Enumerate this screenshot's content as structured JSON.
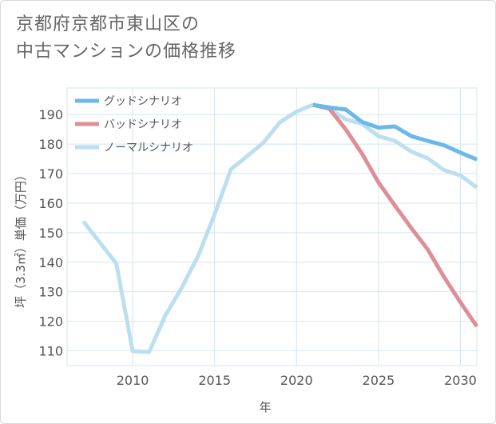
{
  "chart_data": {
    "type": "line",
    "title_lines": [
      "京都府京都市東山区の",
      "中古マンションの価格推移"
    ],
    "xlabel": "年",
    "ylabel": "坪（3.3㎡）単価（万円）",
    "xlim": [
      2006,
      2031
    ],
    "ylim": [
      105,
      199
    ],
    "xticks": [
      2010,
      2015,
      2020,
      2025,
      2030
    ],
    "yticks": [
      110,
      120,
      130,
      140,
      150,
      160,
      170,
      180,
      190
    ],
    "grid": true,
    "legend_position": "top-left",
    "series": [
      {
        "name": "グッドシナリオ",
        "color": "#6cb8e8",
        "points": [
          [
            2021,
            193.3
          ],
          [
            2022,
            192.4
          ],
          [
            2023,
            191.7
          ],
          [
            2024,
            187.5
          ],
          [
            2025,
            185.6
          ],
          [
            2026,
            186.0
          ],
          [
            2027,
            182.7
          ],
          [
            2028,
            181.1
          ],
          [
            2029,
            179.6
          ],
          [
            2030,
            177.1
          ],
          [
            2031,
            174.8
          ]
        ]
      },
      {
        "name": "バッドシナリオ",
        "color": "#de8e96",
        "points": [
          [
            2021,
            193.3
          ],
          [
            2022,
            192.0
          ],
          [
            2023,
            185.0
          ],
          [
            2024,
            176.7
          ],
          [
            2025,
            167.0
          ],
          [
            2026,
            159.2
          ],
          [
            2027,
            151.6
          ],
          [
            2028,
            144.4
          ],
          [
            2029,
            135.0
          ],
          [
            2030,
            126.4
          ],
          [
            2031,
            118.3
          ]
        ]
      },
      {
        "name": "ノーマルシナリオ",
        "color": "#bcdff0",
        "points": [
          [
            2007,
            153.8
          ],
          [
            2008,
            146.7
          ],
          [
            2009,
            139.6
          ],
          [
            2010,
            109.9
          ],
          [
            2011,
            109.6
          ],
          [
            2012,
            122.0
          ],
          [
            2013,
            131.4
          ],
          [
            2014,
            142.2
          ],
          [
            2015,
            156.2
          ],
          [
            2016,
            171.5
          ],
          [
            2017,
            176.0
          ],
          [
            2018,
            180.6
          ],
          [
            2019,
            187.5
          ],
          [
            2020,
            191.0
          ],
          [
            2021,
            193.3
          ],
          [
            2022,
            191.9
          ],
          [
            2023,
            188.4
          ],
          [
            2024,
            186.9
          ],
          [
            2025,
            182.7
          ],
          [
            2026,
            181.1
          ],
          [
            2027,
            177.5
          ],
          [
            2028,
            175.2
          ],
          [
            2029,
            171.2
          ],
          [
            2030,
            169.4
          ],
          [
            2031,
            165.3
          ]
        ]
      }
    ]
  }
}
